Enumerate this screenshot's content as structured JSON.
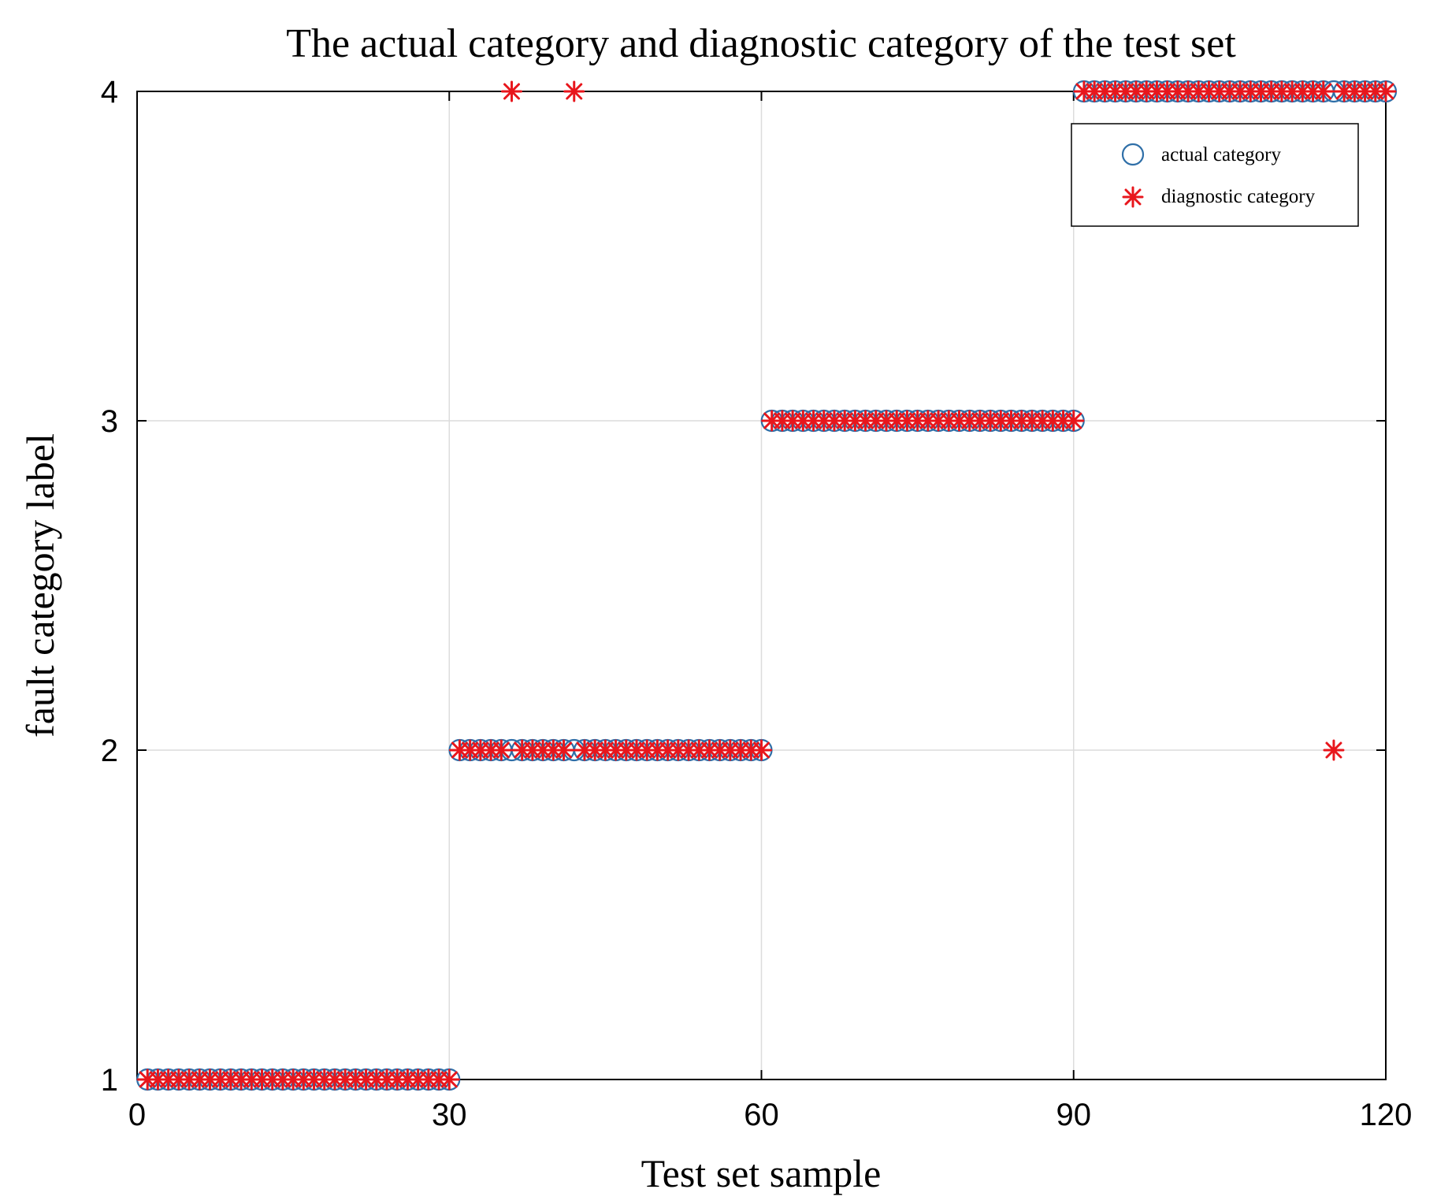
{
  "chart_data": {
    "type": "scatter",
    "title": "The actual category and diagnostic category of the test set",
    "xlabel": "Test set sample",
    "ylabel": "fault category label",
    "xlim": [
      0,
      120
    ],
    "ylim": [
      1,
      4
    ],
    "xticks": [
      "0",
      "30",
      "60",
      "90",
      "120"
    ],
    "yticks": [
      "1",
      "2",
      "3",
      "4"
    ],
    "grid": true,
    "legend_position": "top-right",
    "series": [
      {
        "name": "actual category",
        "marker": "circle",
        "color": "#2f6fa8",
        "points": [
          [
            1,
            1
          ],
          [
            2,
            1
          ],
          [
            3,
            1
          ],
          [
            4,
            1
          ],
          [
            5,
            1
          ],
          [
            6,
            1
          ],
          [
            7,
            1
          ],
          [
            8,
            1
          ],
          [
            9,
            1
          ],
          [
            10,
            1
          ],
          [
            11,
            1
          ],
          [
            12,
            1
          ],
          [
            13,
            1
          ],
          [
            14,
            1
          ],
          [
            15,
            1
          ],
          [
            16,
            1
          ],
          [
            17,
            1
          ],
          [
            18,
            1
          ],
          [
            19,
            1
          ],
          [
            20,
            1
          ],
          [
            21,
            1
          ],
          [
            22,
            1
          ],
          [
            23,
            1
          ],
          [
            24,
            1
          ],
          [
            25,
            1
          ],
          [
            26,
            1
          ],
          [
            27,
            1
          ],
          [
            28,
            1
          ],
          [
            29,
            1
          ],
          [
            30,
            1
          ],
          [
            31,
            2
          ],
          [
            32,
            2
          ],
          [
            33,
            2
          ],
          [
            34,
            2
          ],
          [
            35,
            2
          ],
          [
            36,
            2
          ],
          [
            37,
            2
          ],
          [
            38,
            2
          ],
          [
            39,
            2
          ],
          [
            40,
            2
          ],
          [
            41,
            2
          ],
          [
            42,
            2
          ],
          [
            43,
            2
          ],
          [
            44,
            2
          ],
          [
            45,
            2
          ],
          [
            46,
            2
          ],
          [
            47,
            2
          ],
          [
            48,
            2
          ],
          [
            49,
            2
          ],
          [
            50,
            2
          ],
          [
            51,
            2
          ],
          [
            52,
            2
          ],
          [
            53,
            2
          ],
          [
            54,
            2
          ],
          [
            55,
            2
          ],
          [
            56,
            2
          ],
          [
            57,
            2
          ],
          [
            58,
            2
          ],
          [
            59,
            2
          ],
          [
            60,
            2
          ],
          [
            61,
            3
          ],
          [
            62,
            3
          ],
          [
            63,
            3
          ],
          [
            64,
            3
          ],
          [
            65,
            3
          ],
          [
            66,
            3
          ],
          [
            67,
            3
          ],
          [
            68,
            3
          ],
          [
            69,
            3
          ],
          [
            70,
            3
          ],
          [
            71,
            3
          ],
          [
            72,
            3
          ],
          [
            73,
            3
          ],
          [
            74,
            3
          ],
          [
            75,
            3
          ],
          [
            76,
            3
          ],
          [
            77,
            3
          ],
          [
            78,
            3
          ],
          [
            79,
            3
          ],
          [
            80,
            3
          ],
          [
            81,
            3
          ],
          [
            82,
            3
          ],
          [
            83,
            3
          ],
          [
            84,
            3
          ],
          [
            85,
            3
          ],
          [
            86,
            3
          ],
          [
            87,
            3
          ],
          [
            88,
            3
          ],
          [
            89,
            3
          ],
          [
            90,
            3
          ],
          [
            91,
            4
          ],
          [
            92,
            4
          ],
          [
            93,
            4
          ],
          [
            94,
            4
          ],
          [
            95,
            4
          ],
          [
            96,
            4
          ],
          [
            97,
            4
          ],
          [
            98,
            4
          ],
          [
            99,
            4
          ],
          [
            100,
            4
          ],
          [
            101,
            4
          ],
          [
            102,
            4
          ],
          [
            103,
            4
          ],
          [
            104,
            4
          ],
          [
            105,
            4
          ],
          [
            106,
            4
          ],
          [
            107,
            4
          ],
          [
            108,
            4
          ],
          [
            109,
            4
          ],
          [
            110,
            4
          ],
          [
            111,
            4
          ],
          [
            112,
            4
          ],
          [
            113,
            4
          ],
          [
            114,
            4
          ],
          [
            115,
            4
          ],
          [
            116,
            4
          ],
          [
            117,
            4
          ],
          [
            118,
            4
          ],
          [
            119,
            4
          ],
          [
            120,
            4
          ]
        ]
      },
      {
        "name": "diagnostic category",
        "marker": "asterisk",
        "color": "#e8161c",
        "points": [
          [
            1,
            1
          ],
          [
            2,
            1
          ],
          [
            3,
            1
          ],
          [
            4,
            1
          ],
          [
            5,
            1
          ],
          [
            6,
            1
          ],
          [
            7,
            1
          ],
          [
            8,
            1
          ],
          [
            9,
            1
          ],
          [
            10,
            1
          ],
          [
            11,
            1
          ],
          [
            12,
            1
          ],
          [
            13,
            1
          ],
          [
            14,
            1
          ],
          [
            15,
            1
          ],
          [
            16,
            1
          ],
          [
            17,
            1
          ],
          [
            18,
            1
          ],
          [
            19,
            1
          ],
          [
            20,
            1
          ],
          [
            21,
            1
          ],
          [
            22,
            1
          ],
          [
            23,
            1
          ],
          [
            24,
            1
          ],
          [
            25,
            1
          ],
          [
            26,
            1
          ],
          [
            27,
            1
          ],
          [
            28,
            1
          ],
          [
            29,
            1
          ],
          [
            30,
            1
          ],
          [
            31,
            2
          ],
          [
            32,
            2
          ],
          [
            33,
            2
          ],
          [
            34,
            2
          ],
          [
            35,
            2
          ],
          [
            36,
            4
          ],
          [
            37,
            2
          ],
          [
            38,
            2
          ],
          [
            39,
            2
          ],
          [
            40,
            2
          ],
          [
            41,
            2
          ],
          [
            42,
            4
          ],
          [
            43,
            2
          ],
          [
            44,
            2
          ],
          [
            45,
            2
          ],
          [
            46,
            2
          ],
          [
            47,
            2
          ],
          [
            48,
            2
          ],
          [
            49,
            2
          ],
          [
            50,
            2
          ],
          [
            51,
            2
          ],
          [
            52,
            2
          ],
          [
            53,
            2
          ],
          [
            54,
            2
          ],
          [
            55,
            2
          ],
          [
            56,
            2
          ],
          [
            57,
            2
          ],
          [
            58,
            2
          ],
          [
            59,
            2
          ],
          [
            60,
            2
          ],
          [
            61,
            3
          ],
          [
            62,
            3
          ],
          [
            63,
            3
          ],
          [
            64,
            3
          ],
          [
            65,
            3
          ],
          [
            66,
            3
          ],
          [
            67,
            3
          ],
          [
            68,
            3
          ],
          [
            69,
            3
          ],
          [
            70,
            3
          ],
          [
            71,
            3
          ],
          [
            72,
            3
          ],
          [
            73,
            3
          ],
          [
            74,
            3
          ],
          [
            75,
            3
          ],
          [
            76,
            3
          ],
          [
            77,
            3
          ],
          [
            78,
            3
          ],
          [
            79,
            3
          ],
          [
            80,
            3
          ],
          [
            81,
            3
          ],
          [
            82,
            3
          ],
          [
            83,
            3
          ],
          [
            84,
            3
          ],
          [
            85,
            3
          ],
          [
            86,
            3
          ],
          [
            87,
            3
          ],
          [
            88,
            3
          ],
          [
            89,
            3
          ],
          [
            90,
            3
          ],
          [
            91,
            4
          ],
          [
            92,
            4
          ],
          [
            93,
            4
          ],
          [
            94,
            4
          ],
          [
            95,
            4
          ],
          [
            96,
            4
          ],
          [
            97,
            4
          ],
          [
            98,
            4
          ],
          [
            99,
            4
          ],
          [
            100,
            4
          ],
          [
            101,
            4
          ],
          [
            102,
            4
          ],
          [
            103,
            4
          ],
          [
            104,
            4
          ],
          [
            105,
            4
          ],
          [
            106,
            4
          ],
          [
            107,
            4
          ],
          [
            108,
            4
          ],
          [
            109,
            4
          ],
          [
            110,
            4
          ],
          [
            111,
            4
          ],
          [
            112,
            4
          ],
          [
            113,
            4
          ],
          [
            114,
            4
          ],
          [
            115,
            2
          ],
          [
            116,
            4
          ],
          [
            117,
            4
          ],
          [
            118,
            4
          ],
          [
            119,
            4
          ],
          [
            120,
            4
          ]
        ]
      }
    ]
  }
}
